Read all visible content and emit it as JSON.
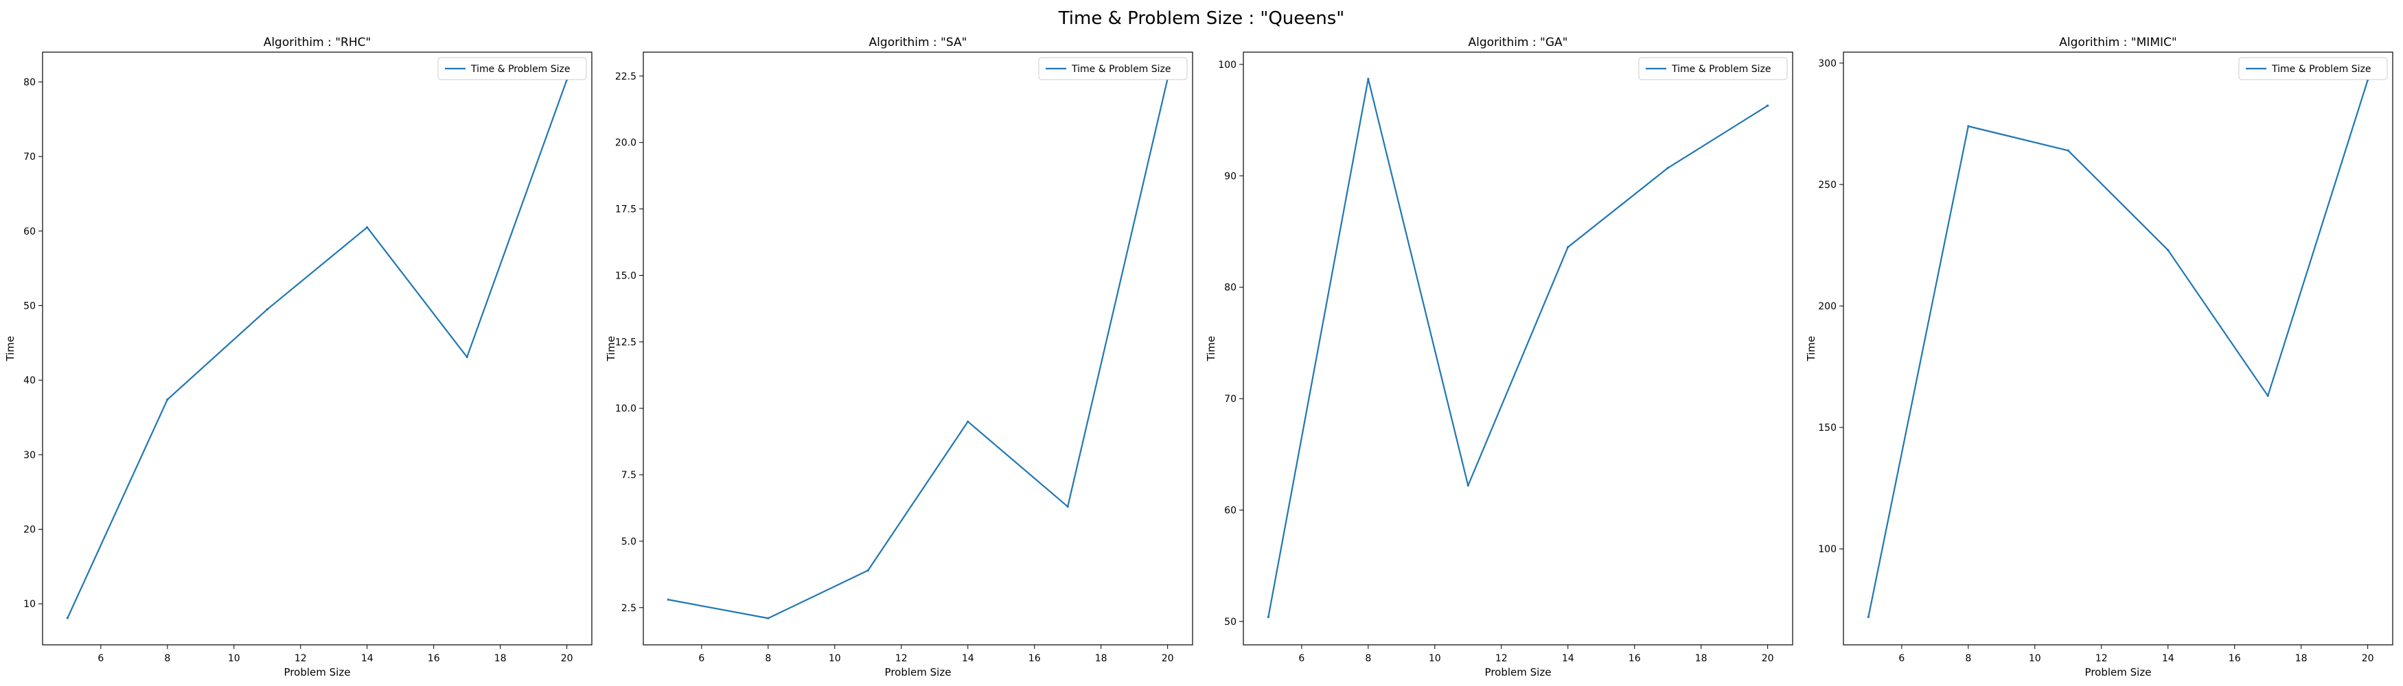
{
  "figure": {
    "suptitle": "Time & Problem Size : \"Queens\""
  },
  "chart_data": [
    {
      "type": "line",
      "title": "Algorithim : \"RHC\"",
      "xlabel": "Problem Size",
      "ylabel": "Time",
      "x": [
        5,
        8,
        11,
        14,
        17,
        20
      ],
      "series": [
        {
          "name": "Time & Problem Size",
          "values": [
            8.1,
            37.4,
            49.5,
            60.5,
            43.1,
            80.3
          ]
        }
      ],
      "xlim": [
        4.25,
        20.75
      ],
      "ylim": [
        4.5,
        84.0
      ],
      "xticks": [
        6,
        8,
        10,
        12,
        14,
        16,
        18,
        20
      ],
      "yticks": [
        10,
        20,
        30,
        40,
        50,
        60,
        70,
        80
      ],
      "ytick_labels": [
        "10",
        "20",
        "30",
        "40",
        "50",
        "60",
        "70",
        "80"
      ],
      "legend": "upper right",
      "grid": false,
      "color": "#1f77b4"
    },
    {
      "type": "line",
      "title": "Algorithim : \"SA\"",
      "xlabel": "Problem Size",
      "ylabel": "Time",
      "x": [
        5,
        8,
        11,
        14,
        17,
        20
      ],
      "series": [
        {
          "name": "Time & Problem Size",
          "values": [
            2.8,
            2.1,
            3.9,
            9.5,
            6.3,
            22.4
          ]
        }
      ],
      "xlim": [
        4.25,
        20.75
      ],
      "ylim": [
        1.1,
        23.4
      ],
      "xticks": [
        6,
        8,
        10,
        12,
        14,
        16,
        18,
        20
      ],
      "yticks": [
        2.5,
        5.0,
        7.5,
        10.0,
        12.5,
        15.0,
        17.5,
        20.0,
        22.5
      ],
      "ytick_labels": [
        "2.5",
        "5.0",
        "7.5",
        "10.0",
        "12.5",
        "15.0",
        "17.5",
        "20.0",
        "22.5"
      ],
      "legend": "upper right",
      "grid": false,
      "color": "#1f77b4"
    },
    {
      "type": "line",
      "title": "Algorithim : \"GA\"",
      "xlabel": "Problem Size",
      "ylabel": "Time",
      "x": [
        5,
        8,
        11,
        14,
        17,
        20
      ],
      "series": [
        {
          "name": "Time & Problem Size",
          "values": [
            50.4,
            98.7,
            62.2,
            83.6,
            90.7,
            96.3
          ]
        }
      ],
      "xlim": [
        4.25,
        20.75
      ],
      "ylim": [
        47.9,
        101.1
      ],
      "xticks": [
        6,
        8,
        10,
        12,
        14,
        16,
        18,
        20
      ],
      "yticks": [
        50,
        60,
        70,
        80,
        90,
        100
      ],
      "ytick_labels": [
        "50",
        "60",
        "70",
        "80",
        "90",
        "100"
      ],
      "legend": "upper right",
      "grid": false,
      "color": "#1f77b4"
    },
    {
      "type": "line",
      "title": "Algorithim : \"MIMIC\"",
      "xlabel": "Problem Size",
      "ylabel": "Time",
      "x": [
        5,
        8,
        11,
        14,
        17,
        20
      ],
      "series": [
        {
          "name": "Time & Problem Size",
          "values": [
            72,
            274,
            264,
            223,
            163,
            293
          ]
        }
      ],
      "xlim": [
        4.25,
        20.75
      ],
      "ylim": [
        60.5,
        304.5
      ],
      "xticks": [
        6,
        8,
        10,
        12,
        14,
        16,
        18,
        20
      ],
      "yticks": [
        100,
        150,
        200,
        250,
        300
      ],
      "ytick_labels": [
        "100",
        "150",
        "200",
        "250",
        "300"
      ],
      "legend": "upper right",
      "grid": false,
      "color": "#1f77b4"
    }
  ]
}
